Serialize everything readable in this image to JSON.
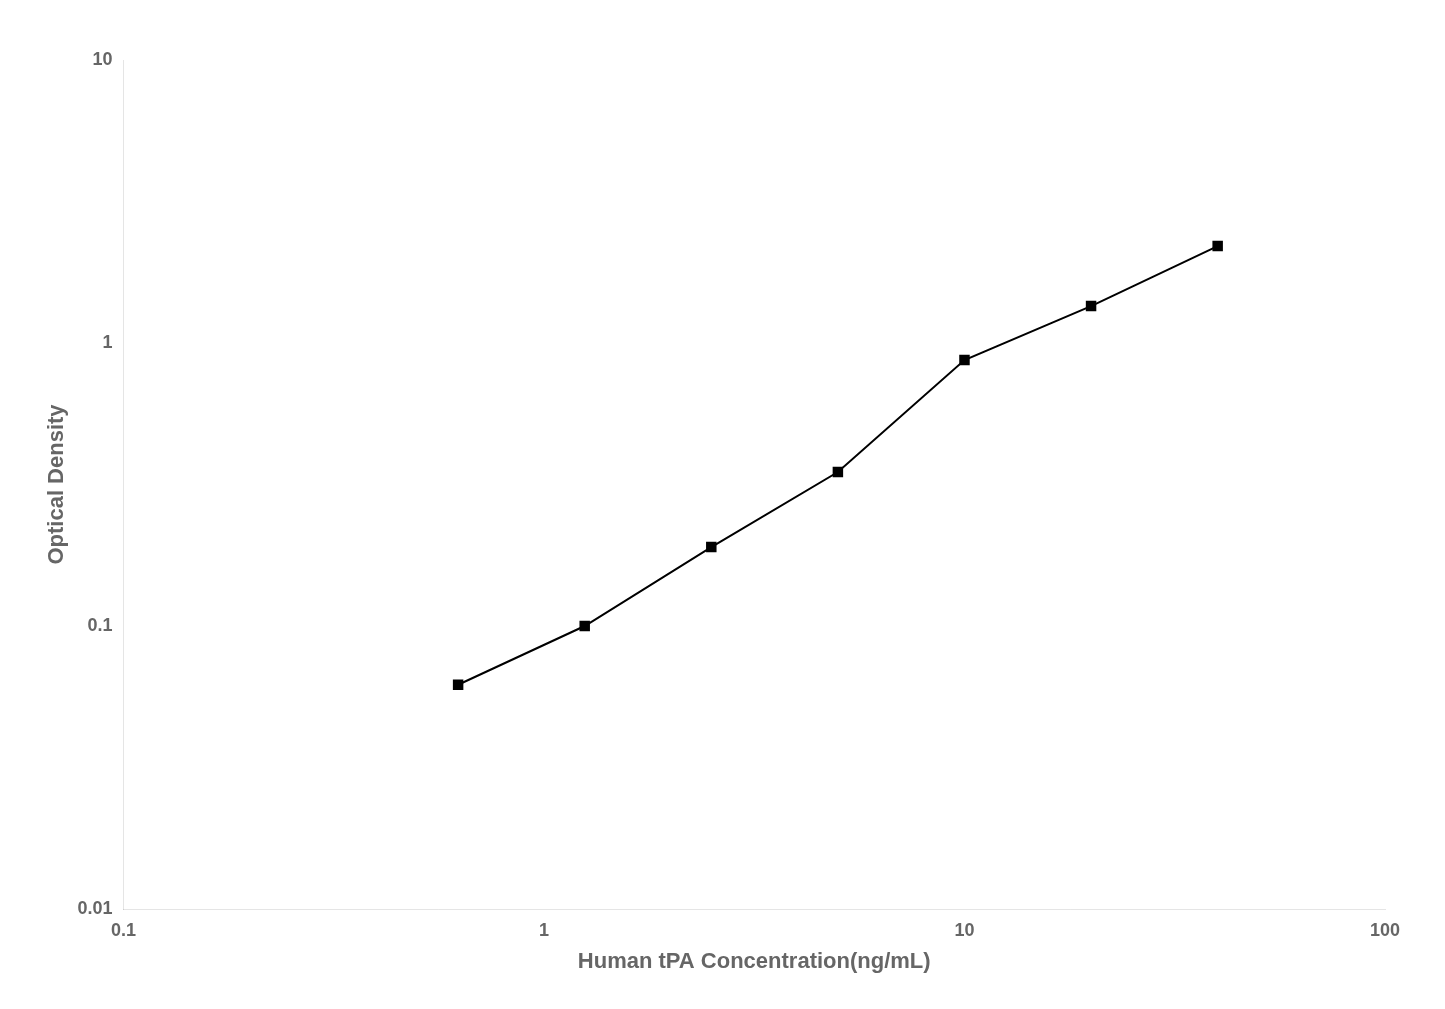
{
  "chart_data": {
    "type": "line",
    "x": [
      0.625,
      1.25,
      2.5,
      5.0,
      10.0,
      20.0,
      40.0
    ],
    "values": [
      0.062,
      0.1,
      0.19,
      0.35,
      0.87,
      1.35,
      2.2
    ],
    "xlabel": "Human tPA Concentration(ng/mL)",
    "ylabel": "Optical Density",
    "xlim": [
      0.1,
      100
    ],
    "ylim": [
      0.01,
      10
    ],
    "xticks": [
      0.1,
      1,
      10,
      100
    ],
    "yticks": [
      0.01,
      0.1,
      1,
      10
    ],
    "log": true,
    "grid": false,
    "color": "#000000",
    "marker": "square"
  }
}
